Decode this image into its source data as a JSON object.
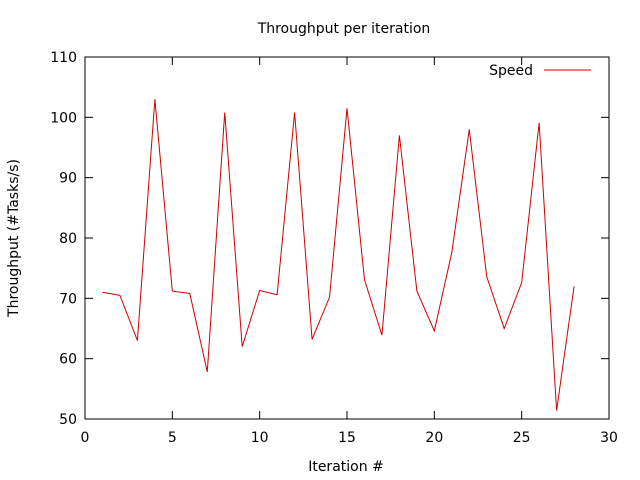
{
  "chart_data": {
    "type": "line",
    "title": "Throughput per iteration",
    "xlabel": "Iteration #",
    "ylabel": "Throughput (#Tasks/s)",
    "xlim": [
      0,
      30
    ],
    "ylim": [
      50,
      110
    ],
    "xticks": [
      0,
      5,
      10,
      15,
      20,
      25,
      30
    ],
    "yticks": [
      50,
      60,
      70,
      80,
      90,
      100,
      110
    ],
    "grid": false,
    "legend_position": "top-right",
    "series": [
      {
        "name": "Speed",
        "color": "#cc0000",
        "x": [
          1,
          2,
          3,
          4,
          5,
          6,
          7,
          8,
          9,
          10,
          11,
          12,
          13,
          14,
          15,
          16,
          17,
          18,
          19,
          20,
          21,
          22,
          23,
          24,
          25,
          26,
          27,
          28
        ],
        "y": [
          71,
          70.5,
          63,
          103,
          71.2,
          70.8,
          57.8,
          100.8,
          62,
          71.3,
          70.6,
          100.8,
          63.2,
          70.2,
          101.5,
          73.1,
          63.9,
          97,
          71.2,
          64.6,
          77.6,
          98,
          73.6,
          65,
          72.6,
          99.1,
          51.4,
          72
        ]
      }
    ]
  }
}
